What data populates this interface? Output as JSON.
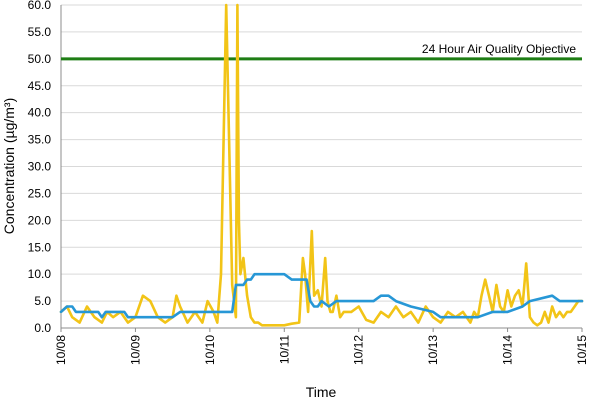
{
  "chart_data": {
    "type": "line",
    "title": "",
    "xlabel": "Time",
    "ylabel": "Concentration (µg/m³)",
    "ylim": [
      0,
      60
    ],
    "y_ticks": [
      "0.0",
      "5.0",
      "10.0",
      "15.0",
      "20.0",
      "25.0",
      "30.0",
      "35.0",
      "40.0",
      "45.0",
      "50.0",
      "55.0",
      "60.0"
    ],
    "x_ticks": [
      "10/08",
      "10/09",
      "10/10",
      "10/11",
      "10/12",
      "10/13",
      "10/14",
      "10/15"
    ],
    "grid": "horizontal",
    "objective": {
      "label": "24 Hour Air Quality Objective",
      "value": 50,
      "color": "#1e7d14"
    },
    "series": [
      {
        "color": "#f2c417",
        "x_days": [
          0,
          0.08,
          0.15,
          0.25,
          0.35,
          0.45,
          0.55,
          0.62,
          0.7,
          0.8,
          0.9,
          1.0,
          1.1,
          1.2,
          1.3,
          1.4,
          1.5,
          1.55,
          1.6,
          1.7,
          1.75,
          1.8,
          1.9,
          1.97,
          2.05,
          2.1,
          2.15,
          2.22,
          2.3,
          2.35,
          2.37,
          2.39,
          2.41,
          2.45,
          2.5,
          2.55,
          2.6,
          2.65,
          2.7,
          2.75,
          2.8,
          2.9,
          3.0,
          3.1,
          3.2,
          3.25,
          3.28,
          3.32,
          3.37,
          3.4,
          3.45,
          3.5,
          3.55,
          3.58,
          3.62,
          3.65,
          3.7,
          3.75,
          3.8,
          3.9,
          4.0,
          4.1,
          4.2,
          4.3,
          4.4,
          4.5,
          4.6,
          4.7,
          4.8,
          4.9,
          5.0,
          5.1,
          5.2,
          5.3,
          5.4,
          5.5,
          5.55,
          5.6,
          5.65,
          5.7,
          5.75,
          5.8,
          5.85,
          5.9,
          5.95,
          6.0,
          6.05,
          6.1,
          6.15,
          6.2,
          6.25,
          6.3,
          6.35,
          6.4,
          6.45,
          6.5,
          6.55,
          6.6,
          6.65,
          6.7,
          6.75,
          6.8,
          6.85,
          6.9,
          6.95,
          7.0
        ],
        "values": [
          3,
          4,
          2,
          1,
          4,
          2,
          1,
          3,
          2,
          3,
          1,
          2,
          6,
          5,
          2,
          1,
          2,
          6,
          4,
          1,
          2,
          3,
          1,
          5,
          3,
          1,
          10,
          60,
          8,
          2,
          60,
          20,
          10,
          13,
          6,
          2,
          1,
          1,
          0.5,
          0.5,
          0.5,
          0.5,
          0.5,
          0.8,
          1,
          13,
          10,
          3,
          18,
          6,
          7,
          4,
          13,
          5,
          3,
          3,
          6,
          2,
          3,
          3,
          4,
          1.5,
          1,
          3,
          2,
          4,
          2,
          3,
          1,
          4,
          2,
          1,
          3,
          2,
          3,
          1,
          3,
          2,
          6,
          9,
          6,
          3,
          8,
          4,
          3,
          7,
          4,
          6,
          7,
          4,
          12,
          2,
          1,
          0.5,
          1,
          3,
          1,
          4,
          2,
          3,
          2,
          3,
          3,
          4,
          5,
          5
        ]
      },
      {
        "color": "#2797d6",
        "x_days": [
          0,
          0.08,
          0.15,
          0.2,
          0.3,
          0.5,
          0.55,
          0.6,
          0.7,
          0.85,
          0.9,
          1.0,
          1.5,
          1.6,
          2.3,
          2.35,
          2.45,
          2.5,
          2.55,
          2.6,
          2.7,
          2.8,
          3.0,
          3.1,
          3.15,
          3.3,
          3.35,
          3.4,
          3.45,
          3.5,
          3.6,
          3.7,
          4.0,
          4.2,
          4.3,
          4.4,
          4.5,
          4.7,
          5.0,
          5.1,
          5.5,
          5.6,
          5.8,
          6.0,
          6.2,
          6.3,
          6.6,
          6.7,
          7.0
        ],
        "values": [
          3,
          4,
          4,
          3,
          3,
          3,
          2,
          3,
          3,
          3,
          2,
          2,
          2,
          3,
          3,
          8,
          8,
          9,
          9,
          10,
          10,
          10,
          10,
          9,
          9,
          9,
          5,
          4,
          4,
          5,
          4,
          5,
          5,
          5,
          6,
          6,
          5,
          4,
          3,
          2,
          2,
          2,
          3,
          3,
          4,
          5,
          6,
          5,
          5
        ]
      }
    ]
  }
}
